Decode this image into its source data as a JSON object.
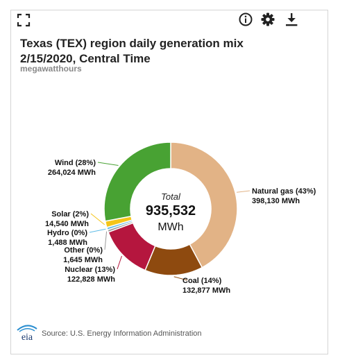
{
  "toolbar": {
    "expand_icon": "expand-icon",
    "info_icon": "info-icon",
    "gear_icon": "gear-icon",
    "download_icon": "download-icon"
  },
  "header": {
    "title_line1": "Texas (TEX) region daily generation mix",
    "title_line2": "2/15/2020, Central Time",
    "units": "megawatthours"
  },
  "center": {
    "label": "Total",
    "value": "935,532",
    "unit": "MWh"
  },
  "footer": {
    "source": "Source: U.S. Energy Information Administration",
    "logo_text": "eia"
  },
  "colors": {
    "natural_gas": "#e2b386",
    "coal": "#8e4a0f",
    "nuclear": "#b5163e",
    "other": "#9b9b9b",
    "hydro": "#5dbbe6",
    "solar": "#f5c518",
    "wind": "#48a233"
  },
  "chart_data": {
    "type": "pie",
    "title": "Texas (TEX) region daily generation mix 2/15/2020, Central Time",
    "unit": "megawatthours",
    "total": 935532,
    "slices": [
      {
        "name": "Natural gas",
        "pct_label": "Natural gas (43%)",
        "value": 398130,
        "value_label": "398,130 MWh",
        "color": "#e2b386"
      },
      {
        "name": "Coal",
        "pct_label": "Coal (14%)",
        "value": 132877,
        "value_label": "132,877 MWh",
        "color": "#8e4a0f"
      },
      {
        "name": "Nuclear",
        "pct_label": "Nuclear (13%)",
        "value": 122828,
        "value_label": "122,828 MWh",
        "color": "#b5163e"
      },
      {
        "name": "Other",
        "pct_label": "Other (0%)",
        "value": 1645,
        "value_label": "1,645 MWh",
        "color": "#9b9b9b"
      },
      {
        "name": "Hydro",
        "pct_label": "Hydro (0%)",
        "value": 1488,
        "value_label": "1,488 MWh",
        "color": "#5dbbe6"
      },
      {
        "name": "Solar",
        "pct_label": "Solar (2%)",
        "value": 14540,
        "value_label": "14,540 MWh",
        "color": "#f5c518"
      },
      {
        "name": "Wind",
        "pct_label": "Wind (28%)",
        "value": 264024,
        "value_label": "264,024 MWh",
        "color": "#48a233"
      }
    ]
  }
}
